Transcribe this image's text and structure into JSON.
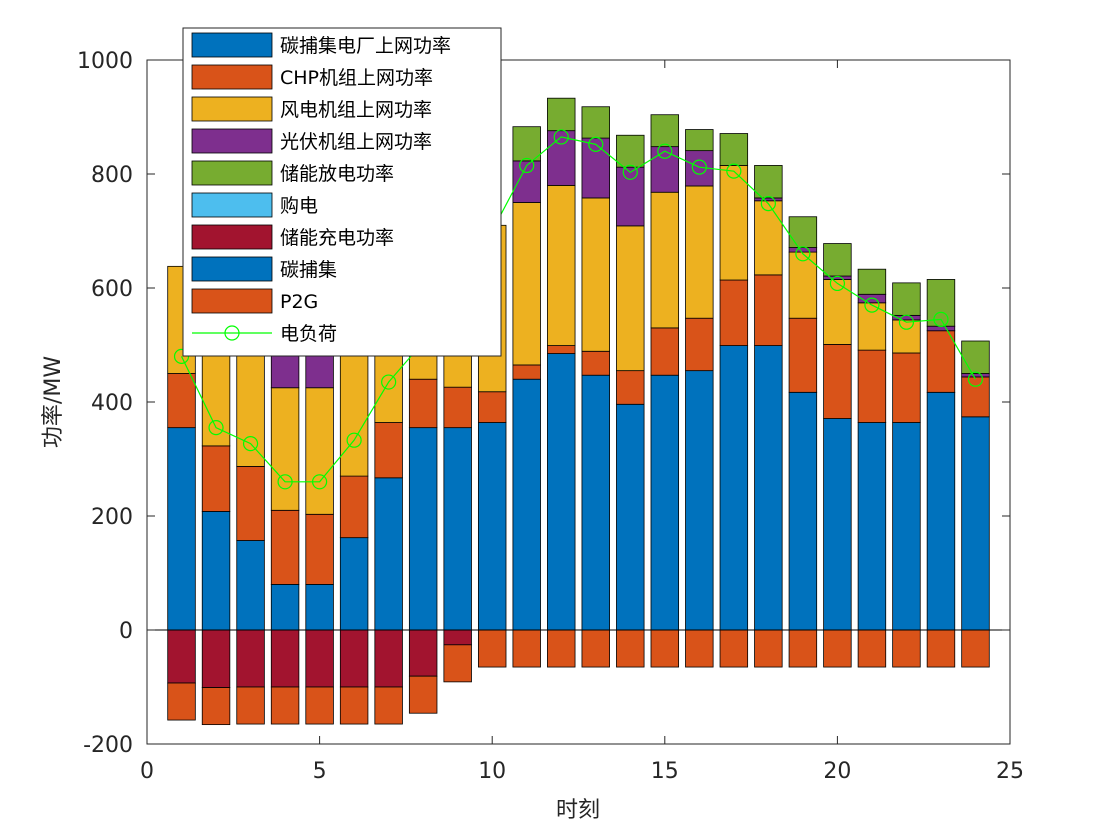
{
  "chart_data": {
    "type": "bar",
    "stacked": true,
    "xlabel": "时刻",
    "ylabel": "功率/MW",
    "xlim": [
      0,
      25
    ],
    "ylim": [
      -200,
      1000
    ],
    "xticks": [
      0,
      5,
      10,
      15,
      20,
      25
    ],
    "yticks": [
      -200,
      0,
      200,
      400,
      600,
      800,
      1000
    ],
    "legend_position": "top-left",
    "x": [
      1,
      2,
      3,
      4,
      5,
      6,
      7,
      8,
      9,
      10,
      11,
      12,
      13,
      14,
      15,
      16,
      17,
      18,
      19,
      20,
      21,
      22,
      23,
      24
    ],
    "series": [
      {
        "name": "碳捕集电厂上网功率",
        "color": "#0072BD",
        "values": [
          355,
          208,
          157,
          80,
          80,
          162,
          267,
          355,
          355,
          364,
          440,
          485,
          447,
          396,
          447,
          455,
          499,
          499,
          417,
          371,
          364,
          364,
          417,
          374
        ]
      },
      {
        "name": "CHP机组上网功率",
        "color": "#D95319",
        "values": [
          95,
          115,
          130,
          130,
          123,
          108,
          97,
          85,
          71,
          54,
          25,
          14,
          42,
          59,
          83,
          92,
          115,
          124,
          130,
          130,
          127,
          122,
          108,
          70
        ]
      },
      {
        "name": "风电机组上网功率",
        "color": "#EDB120",
        "values": [
          188,
          177,
          213,
          215,
          222,
          232,
          244,
          233,
          247,
          292,
          285,
          281,
          269,
          254,
          238,
          232,
          201,
          130,
          116,
          114,
          83,
          58,
          0,
          0
        ]
      },
      {
        "name": "光伏机组上网功率",
        "color": "#7E2F8E",
        "values": [
          0,
          0,
          0,
          63,
          63,
          0,
          0,
          0,
          0,
          0,
          73,
          96,
          105,
          103,
          80,
          62,
          0,
          5,
          8,
          6,
          15,
          8,
          8,
          6
        ]
      },
      {
        "name": "储能放电功率",
        "color": "#77AC30",
        "values": [
          0,
          0,
          0,
          0,
          0,
          0,
          0,
          0,
          0,
          0,
          60,
          57,
          55,
          56,
          56,
          37,
          56,
          57,
          54,
          57,
          44,
          57,
          82,
          57
        ]
      },
      {
        "name": "购电",
        "color": "#4DBEEE",
        "values": [
          0,
          0,
          0,
          0,
          0,
          0,
          0,
          0,
          0,
          0,
          0,
          0,
          0,
          0,
          0,
          0,
          0,
          0,
          0,
          0,
          0,
          0,
          0,
          0
        ]
      },
      {
        "name": "储能充电功率",
        "color": "#A2142F",
        "values": [
          -93,
          -101,
          -100,
          -100,
          -100,
          -100,
          -100,
          -81,
          -26,
          0,
          0,
          0,
          0,
          0,
          0,
          0,
          0,
          0,
          0,
          0,
          0,
          0,
          0,
          0
        ]
      },
      {
        "name": "碳捕集",
        "color": "#0072BD",
        "values": [
          0,
          0,
          0,
          0,
          0,
          0,
          0,
          0,
          0,
          0,
          0,
          0,
          0,
          0,
          0,
          0,
          0,
          0,
          0,
          0,
          0,
          0,
          0,
          0
        ]
      },
      {
        "name": "P2G",
        "color": "#D95319",
        "values": [
          -65,
          -65,
          -65,
          -65,
          -65,
          -65,
          -65,
          -65,
          -65,
          -65,
          -65,
          -65,
          -65,
          -65,
          -65,
          -65,
          -65,
          -65,
          -65,
          -65,
          -65,
          -65,
          -65,
          -65
        ]
      }
    ],
    "line_series": {
      "name": "电负荷",
      "color": "#00FF00",
      "values": [
        480,
        355,
        327,
        260,
        260,
        333,
        435,
        505,
        555,
        700,
        815,
        865,
        852,
        803,
        840,
        812,
        805,
        748,
        660,
        608,
        570,
        540,
        545,
        440
      ]
    },
    "legend_order": [
      "碳捕集电厂上网功率",
      "CHP机组上网功率",
      "风电机组上网功率",
      "光伏机组上网功率",
      "储能放电功率",
      "购电",
      "储能充电功率",
      "碳捕集",
      "P2G",
      "电负荷"
    ]
  }
}
